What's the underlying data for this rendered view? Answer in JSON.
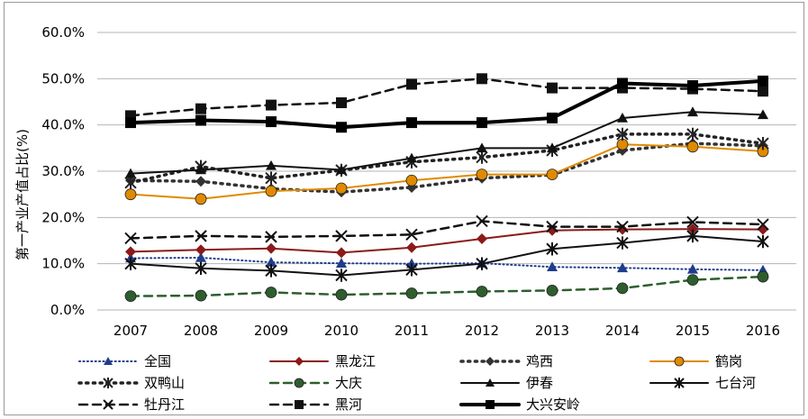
{
  "chart_data": {
    "type": "line",
    "title": "",
    "xlabel": "",
    "ylabel": "第一产业产值占比(%)",
    "ylim": [
      0,
      60
    ],
    "y_ticks": [
      "0.0%",
      "10.0%",
      "20.0%",
      "30.0%",
      "40.0%",
      "50.0%",
      "60.0%"
    ],
    "y_tick_values": [
      0,
      10,
      20,
      30,
      40,
      50,
      60
    ],
    "grid": true,
    "legend_position": "bottom",
    "categories": [
      "2007",
      "2008",
      "2009",
      "2010",
      "2011",
      "2012",
      "2013",
      "2014",
      "2015",
      "2016"
    ],
    "series": [
      {
        "name": "全国",
        "color": "#1f3d8c",
        "dash": "dotted",
        "marker": "triangle",
        "width": 2,
        "values": [
          11.2,
          11.3,
          10.3,
          10.1,
          10.0,
          10.1,
          9.3,
          9.1,
          8.8,
          8.6
        ]
      },
      {
        "name": "黑龙江",
        "color": "#8b1a1a",
        "dash": "solid",
        "marker": "diamond",
        "width": 2,
        "values": [
          12.6,
          13.0,
          13.3,
          12.4,
          13.5,
          15.4,
          17.2,
          17.4,
          17.5,
          17.4
        ]
      },
      {
        "name": "鸡西",
        "color": "#333333",
        "dash": "dotted",
        "marker": "diamond",
        "width": 3.5,
        "values": [
          28.0,
          27.8,
          26.2,
          25.5,
          26.5,
          28.5,
          29.2,
          34.5,
          36.0,
          35.5
        ]
      },
      {
        "name": "鹤岗",
        "color": "#e08a00",
        "dash": "solid",
        "marker": "circle",
        "width": 2,
        "values": [
          25.0,
          24.0,
          25.7,
          26.3,
          28.0,
          29.3,
          29.3,
          35.8,
          35.3,
          34.3
        ]
      },
      {
        "name": "双鸭山",
        "color": "#222222",
        "dash": "dotted",
        "marker": "asterisk",
        "width": 3.5,
        "values": [
          27.5,
          31.0,
          28.5,
          30.2,
          32.0,
          33.0,
          34.5,
          38.0,
          38.0,
          36.0
        ]
      },
      {
        "name": "大庆",
        "color": "#2e5e2e",
        "dash": "dashed",
        "marker": "circle",
        "width": 2.5,
        "values": [
          3.0,
          3.1,
          3.8,
          3.3,
          3.6,
          4.0,
          4.2,
          4.7,
          6.5,
          7.2
        ]
      },
      {
        "name": "伊春",
        "color": "#111111",
        "dash": "solid",
        "marker": "triangle",
        "width": 2,
        "values": [
          29.5,
          30.3,
          31.2,
          30.3,
          32.8,
          35.0,
          35.0,
          41.5,
          42.8,
          42.2
        ]
      },
      {
        "name": "七台河",
        "color": "#111111",
        "dash": "solid",
        "marker": "asterisk",
        "width": 2,
        "values": [
          10.0,
          9.0,
          8.5,
          7.5,
          8.7,
          10.0,
          13.2,
          14.5,
          16.0,
          14.8
        ]
      },
      {
        "name": "牡丹江",
        "color": "#111111",
        "dash": "dashed",
        "marker": "x",
        "width": 2.5,
        "values": [
          15.5,
          16.0,
          15.8,
          16.0,
          16.3,
          19.2,
          18.0,
          18.0,
          19.0,
          18.5
        ]
      },
      {
        "name": "黑河",
        "color": "#111111",
        "dash": "dashed",
        "marker": "square",
        "width": 2.5,
        "values": [
          42.0,
          43.5,
          44.3,
          44.8,
          48.8,
          50.0,
          48.0,
          48.0,
          47.8,
          47.3
        ]
      },
      {
        "name": "大兴安岭",
        "color": "#000000",
        "dash": "solid",
        "marker": "square",
        "width": 4,
        "values": [
          40.5,
          41.0,
          40.7,
          39.5,
          40.5,
          40.5,
          41.5,
          49.0,
          48.5,
          49.5
        ]
      }
    ]
  }
}
